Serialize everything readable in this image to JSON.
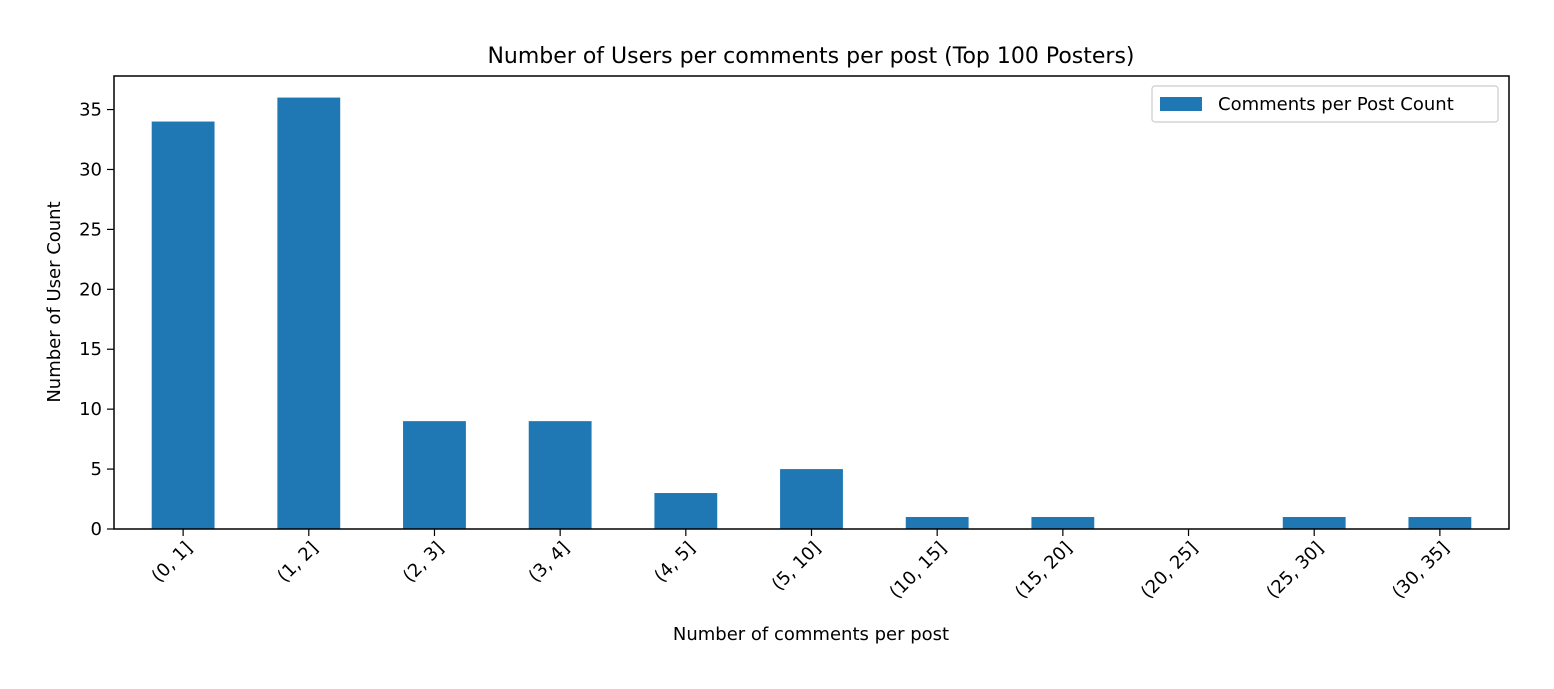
{
  "chart_data": {
    "type": "bar",
    "title": "Number of Users per comments per post (Top 100 Posters)",
    "xlabel": "Number of comments per post",
    "ylabel": "Number of User Count",
    "categories": [
      "(0, 1]",
      "(1, 2]",
      "(2, 3]",
      "(3, 4]",
      "(4, 5]",
      "(5, 10]",
      "(10, 15]",
      "(15, 20]",
      "(20, 25]",
      "(25, 30]",
      "(30, 35]"
    ],
    "series": [
      {
        "name": "Comments per Post Count",
        "values": [
          34,
          36,
          9,
          9,
          3,
          5,
          1,
          1,
          0,
          1,
          1
        ],
        "color": "#1f77b4"
      }
    ],
    "ylim": [
      0,
      37.8
    ],
    "yticks": [
      0,
      5,
      10,
      15,
      20,
      25,
      30,
      35
    ],
    "grid": false,
    "legend_position": "top-right"
  }
}
